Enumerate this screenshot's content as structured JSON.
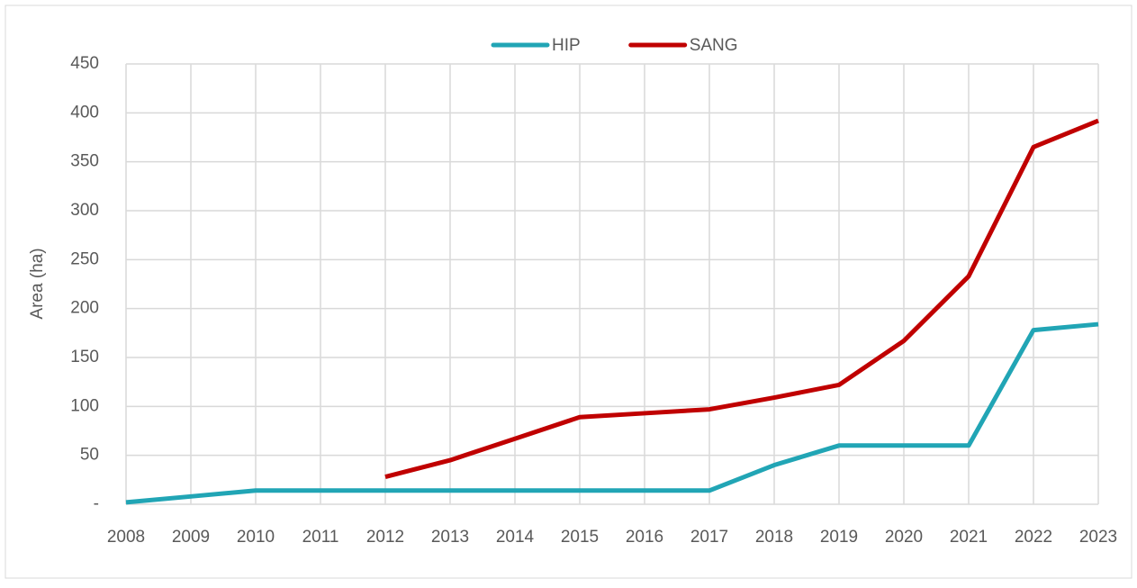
{
  "chart_data": {
    "type": "line",
    "y_label": "Area (ha)",
    "x": [
      2008,
      2009,
      2010,
      2011,
      2012,
      2013,
      2014,
      2015,
      2016,
      2017,
      2018,
      2019,
      2020,
      2021,
      2022,
      2023
    ],
    "xlim": [
      2008,
      2023
    ],
    "series": [
      {
        "name": "HIP",
        "color": "#21a5b5",
        "values": [
          2,
          8,
          14,
          14,
          14,
          14,
          14,
          14,
          14,
          14,
          40,
          60,
          60,
          60,
          178,
          184
        ]
      },
      {
        "name": "SANG",
        "color": "#c00000",
        "values": [
          null,
          null,
          null,
          null,
          28,
          45,
          67,
          89,
          93,
          97,
          109,
          122,
          167,
          233,
          365,
          392
        ]
      }
    ],
    "ylim": [
      0,
      450
    ],
    "yticks": [
      {
        "value": 0,
        "label": "-"
      },
      50,
      100,
      150,
      200,
      250,
      300,
      350,
      400,
      450
    ],
    "grid": true,
    "legend": "top"
  }
}
